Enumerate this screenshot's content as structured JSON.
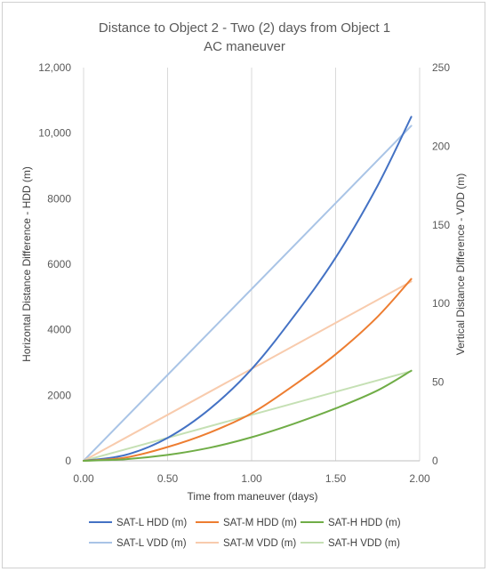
{
  "chart_data": {
    "type": "line",
    "title": "Distance to Object 2 - Two (2) days from Object 1",
    "subtitle": "AC maneuver",
    "xlabel": "Time from maneuver (days)",
    "ylabel_left": "Horizontal Distance Difference - HDD (m)",
    "ylabel_right": "Vertical Distance Difference - VDD (m)",
    "xlim": [
      0,
      2
    ],
    "ylim_left": [
      0,
      12000
    ],
    "ylim_right": [
      0,
      250
    ],
    "x_ticks": [
      "0.00",
      "0.50",
      "1.00",
      "1.50",
      "2.00"
    ],
    "y_left_ticks": [
      "0",
      "2000",
      "4000",
      "6000",
      "8000",
      "10,000",
      "12,000"
    ],
    "y_right_ticks": [
      "0",
      "50",
      "100",
      "150",
      "200",
      "250"
    ],
    "grid": "vertical",
    "legend_position": "bottom",
    "series": [
      {
        "name": "SAT-L HDD (m)",
        "axis": "left",
        "color": "#4472C4",
        "x": [
          0,
          0.25,
          0.5,
          0.75,
          1.0,
          1.25,
          1.5,
          1.75,
          1.95
        ],
        "y": [
          0,
          180,
          700,
          1580,
          2800,
          4400,
          6200,
          8400,
          10500
        ]
      },
      {
        "name": "SAT-M HDD (m)",
        "axis": "left",
        "color": "#ED7D31",
        "x": [
          0,
          0.25,
          0.5,
          0.75,
          1.0,
          1.25,
          1.5,
          1.75,
          1.95
        ],
        "y": [
          0,
          100,
          420,
          860,
          1450,
          2300,
          3250,
          4400,
          5550
        ]
      },
      {
        "name": "SAT-H HDD (m)",
        "axis": "left",
        "color": "#70AD47",
        "x": [
          0,
          0.25,
          0.5,
          0.75,
          1.0,
          1.25,
          1.5,
          1.75,
          1.95
        ],
        "y": [
          0,
          50,
          180,
          400,
          720,
          1130,
          1600,
          2150,
          2750
        ]
      },
      {
        "name": "SAT-L VDD (m)",
        "axis": "right",
        "color": "#A9C4E6",
        "x": [
          0,
          1.95
        ],
        "y": [
          0,
          213
        ]
      },
      {
        "name": "SAT-M VDD (m)",
        "axis": "right",
        "color": "#F8CBAD",
        "x": [
          0,
          1.95
        ],
        "y": [
          0,
          114
        ]
      },
      {
        "name": "SAT-H VDD (m)",
        "axis": "right",
        "color": "#C5E0B4",
        "x": [
          0,
          1.95
        ],
        "y": [
          0,
          57
        ]
      }
    ]
  }
}
